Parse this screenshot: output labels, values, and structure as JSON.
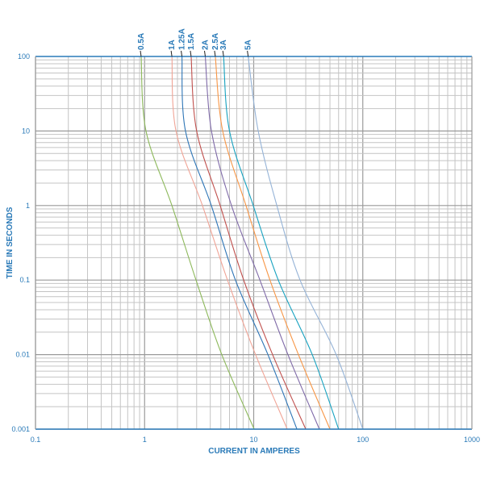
{
  "chart_data": {
    "type": "line",
    "title": "",
    "xlabel": "CURRENT IN AMPERES",
    "ylabel": "TIME IN SECONDS",
    "xscale": "log",
    "yscale": "log",
    "xlim": [
      0.1,
      1000
    ],
    "ylim": [
      0.001,
      100
    ],
    "x_ticks": [
      "0.1",
      "1",
      "10",
      "100",
      "1000"
    ],
    "y_ticks": [
      "100",
      "10",
      "1",
      "0.1",
      "0.01",
      "0.001"
    ],
    "grid": true,
    "legend": "curve labels at top",
    "series": [
      {
        "name": "0.5A",
        "color": "#8cb85a",
        "points": [
          [
            0.93,
            100
          ],
          [
            1.03,
            10
          ],
          [
            1.78,
            1
          ],
          [
            2.96,
            0.1
          ],
          [
            5.1,
            0.01
          ],
          [
            10.1,
            0.001
          ]
        ]
      },
      {
        "name": "1A",
        "color": "#f0a496",
        "points": [
          [
            1.78,
            100
          ],
          [
            1.94,
            10
          ],
          [
            3.39,
            1
          ],
          [
            5.75,
            0.1
          ],
          [
            10.4,
            0.01
          ],
          [
            20.3,
            0.001
          ]
        ]
      },
      {
        "name": "1.25A",
        "color": "#2e75b6",
        "points": [
          [
            2.2,
            100
          ],
          [
            2.37,
            10
          ],
          [
            4.09,
            1
          ],
          [
            6.8,
            0.1
          ],
          [
            13.5,
            0.01
          ],
          [
            24.9,
            0.001
          ]
        ]
      },
      {
        "name": "1.5A",
        "color": "#c0504d",
        "points": [
          [
            2.67,
            100
          ],
          [
            3.0,
            10
          ],
          [
            4.93,
            1
          ],
          [
            8.1,
            0.1
          ],
          [
            14.9,
            0.01
          ],
          [
            30,
            0.001
          ]
        ]
      },
      {
        "name": "2A",
        "color": "#7f6aa8",
        "points": [
          [
            3.6,
            100
          ],
          [
            4.1,
            10
          ],
          [
            6.26,
            1
          ],
          [
            11.4,
            0.1
          ],
          [
            20.6,
            0.01
          ],
          [
            40,
            0.001
          ]
        ]
      },
      {
        "name": "2.5A",
        "color": "#f79646",
        "points": [
          [
            4.45,
            100
          ],
          [
            5.2,
            10
          ],
          [
            8.5,
            1
          ],
          [
            14.1,
            0.1
          ],
          [
            25.7,
            0.01
          ],
          [
            50,
            0.001
          ]
        ]
      },
      {
        "name": "3A",
        "color": "#17a2c0",
        "points": [
          [
            5.3,
            100
          ],
          [
            6.0,
            10
          ],
          [
            9.9,
            1
          ],
          [
            16.8,
            0.1
          ],
          [
            34.4,
            0.01
          ],
          [
            60,
            0.001
          ]
        ]
      },
      {
        "name": "5A",
        "color": "#95b3d7",
        "points": [
          [
            8.9,
            100
          ],
          [
            11,
            10
          ],
          [
            16.3,
            1
          ],
          [
            26.6,
            0.1
          ],
          [
            57,
            0.01
          ],
          [
            100,
            0.001
          ]
        ]
      }
    ]
  }
}
